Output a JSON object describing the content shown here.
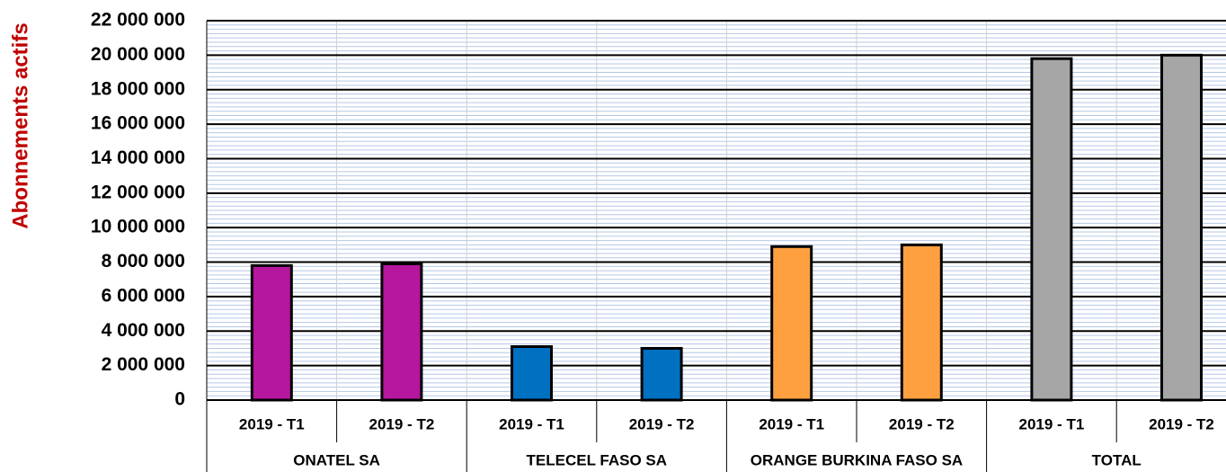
{
  "chart_data": {
    "type": "bar",
    "y_label": "Abonnements actifs",
    "categories": [
      "2019 - T1",
      "2019 - T2",
      "2019 - T1",
      "2019 - T2",
      "2019 - T1",
      "2019 - T2",
      "2019 - T1",
      "2019 - T2"
    ],
    "groups": [
      "ONATEL SA",
      "TELECEL FASO SA",
      "ORANGE BURKINA FASO SA",
      "TOTAL"
    ],
    "values": [
      7800000,
      7900000,
      3100000,
      3000000,
      8900000,
      9000000,
      19800000,
      20000000
    ],
    "colors": [
      "#b5179e",
      "#b5179e",
      "#0070c0",
      "#0070c0",
      "#ffa040",
      "#ffa040",
      "#a6a6a6",
      "#a6a6a6"
    ],
    "ylim": [
      0,
      22000000
    ],
    "yticks": [
      0,
      {
        "value": 2000000,
        "label": "2 000 000"
      },
      {
        "value": 4000000,
        "label": "4 000 000"
      },
      {
        "value": 6000000,
        "label": "6 000 000"
      },
      {
        "value": 8000000,
        "label": "8 000 000"
      },
      {
        "value": 10000000,
        "label": "10 000 000"
      },
      {
        "value": 12000000,
        "label": "12 000 000"
      },
      {
        "value": 14000000,
        "label": "14 000 000"
      },
      {
        "value": 16000000,
        "label": "16 000 000"
      },
      {
        "value": 18000000,
        "label": "18 000 000"
      },
      {
        "value": 20000000,
        "label": "20 000 000"
      },
      {
        "value": 22000000,
        "label": "22 000 000"
      }
    ],
    "grid": true,
    "minor_grid": true
  }
}
